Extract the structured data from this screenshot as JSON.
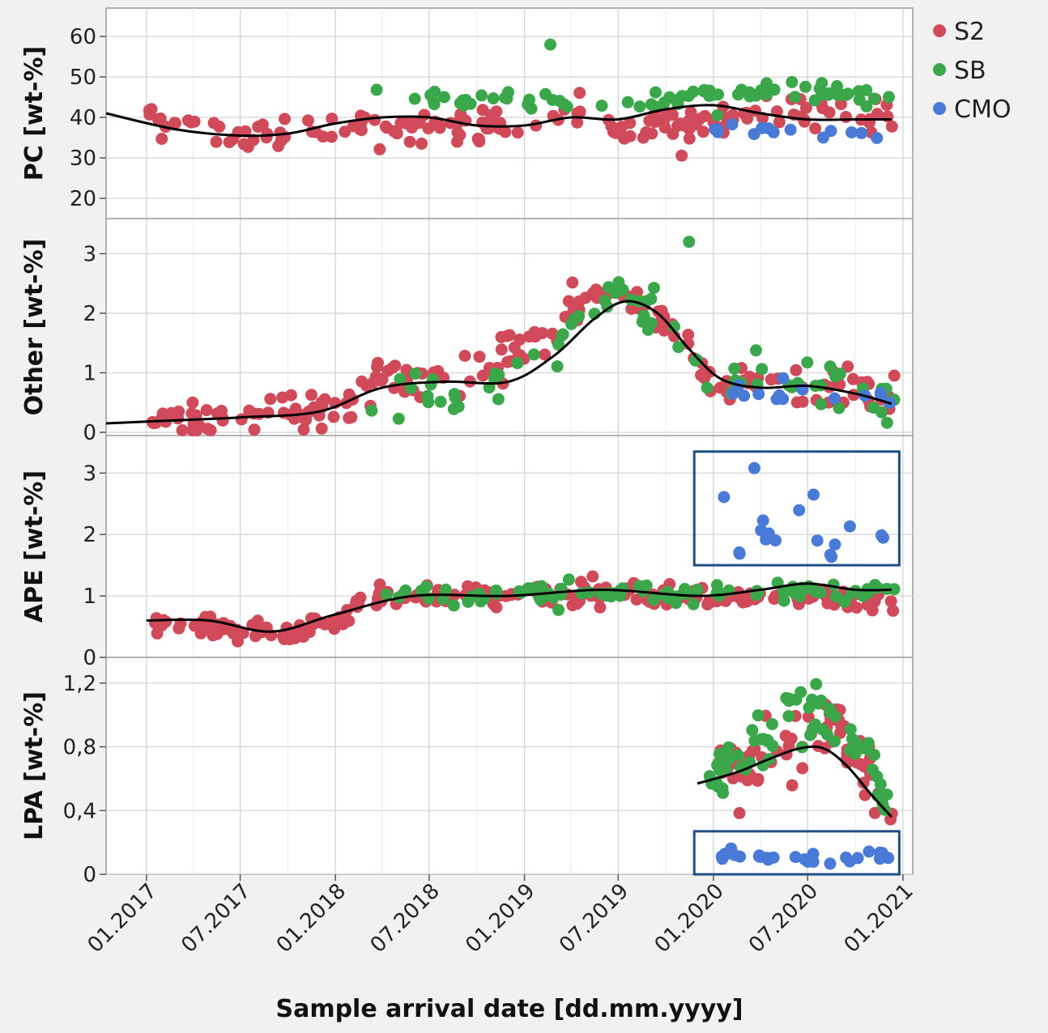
{
  "chart_data": {
    "type": "scatter",
    "xlabel": "Sample arrival date [dd.mm.yyyy]",
    "x_tick_labels": [
      "01.2017",
      "07.2017",
      "01.2018",
      "07.2018",
      "01.2019",
      "07.2019",
      "01.2020",
      "07.2020",
      "01.2021"
    ],
    "xlim": [
      "2016-10-15",
      "2021-01-20"
    ],
    "grid": true,
    "legend": {
      "position": "top-right",
      "entries": [
        {
          "name": "S2",
          "color": "#d04a5a"
        },
        {
          "name": "SB",
          "color": "#3aa84a"
        },
        {
          "name": "CMO",
          "color": "#4a7ad8"
        }
      ]
    },
    "fit_line_color": "#000000",
    "panels": [
      {
        "ylabel": "PC [wt-%]",
        "ylim": [
          17,
          65
        ],
        "y_tick_labels": [
          "20",
          "30",
          "40",
          "50",
          "60"
        ],
        "y_tick_values": [
          20,
          30,
          40,
          50,
          60
        ],
        "trend": {
          "x": [
            "2016-10-15",
            "2017-03-01",
            "2017-07-01",
            "2017-10-01",
            "2018-01-01",
            "2018-04-01",
            "2018-07-01",
            "2018-10-01",
            "2019-01-01",
            "2019-04-01",
            "2019-07-01",
            "2019-10-01",
            "2020-01-01",
            "2020-04-01",
            "2020-07-01",
            "2020-10-01",
            "2020-12-10"
          ],
          "y": [
            41,
            37,
            35.5,
            36,
            38.5,
            40,
            40,
            38,
            38,
            40,
            39.5,
            42,
            43,
            41,
            39.5,
            39.5,
            39.5
          ]
        },
        "series": [
          {
            "name": "S2",
            "base": [
              [
                1,
                40
              ],
              [
                6,
                35
              ],
              [
                12,
                38
              ],
              [
                18,
                38
              ],
              [
                24,
                38
              ],
              [
                27,
                41
              ],
              [
                30,
                37
              ],
              [
                33,
                38
              ],
              [
                36,
                39
              ],
              [
                42,
                42
              ],
              [
                46,
                40
              ]
            ],
            "spread": 3.2,
            "n": 170,
            "x_range": [
              0,
              47.5
            ]
          },
          {
            "name": "SB",
            "base": [
              [
                14,
                45
              ],
              [
                24,
                45
              ],
              [
                30,
                43
              ],
              [
                36,
                46
              ],
              [
                42,
                47
              ],
              [
                47,
                44
              ]
            ],
            "spread": 2.2,
            "n": 75,
            "x_range": [
              14,
              47.5
            ]
          },
          {
            "name": "CMO",
            "base": [
              [
                36,
                38
              ],
              [
                47,
                36
              ]
            ],
            "spread": 1.8,
            "n": 14,
            "x_range": [
              36,
              47.5
            ]
          }
        ],
        "outliers": [
          {
            "series": "SB",
            "x": "2019-02-20",
            "y": 58
          }
        ]
      },
      {
        "ylabel": "Other [wt-%]",
        "ylim": [
          0,
          3.4
        ],
        "y_tick_labels": [
          "0",
          "1",
          "2",
          "3"
        ],
        "y_tick_values": [
          0,
          1,
          2,
          3
        ],
        "trend": {
          "x": [
            "2016-10-15",
            "2017-01-01",
            "2017-07-01",
            "2017-12-01",
            "2018-04-01",
            "2018-08-01",
            "2018-12-01",
            "2019-03-01",
            "2019-05-15",
            "2019-07-15",
            "2019-09-15",
            "2019-11-15",
            "2020-01-15",
            "2020-04-01",
            "2020-07-01",
            "2020-10-01",
            "2020-12-10"
          ],
          "y": [
            0.15,
            0.18,
            0.25,
            0.35,
            0.75,
            0.85,
            0.85,
            1.3,
            1.9,
            2.2,
            2.0,
            1.4,
            0.9,
            0.75,
            0.78,
            0.65,
            0.48
          ]
        },
        "series": [
          {
            "name": "S2",
            "base": [
              [
                0,
                0.15
              ],
              [
                6,
                0.25
              ],
              [
                12,
                0.4
              ],
              [
                15,
                0.9
              ],
              [
                18,
                1.0
              ],
              [
                21,
                1.0
              ],
              [
                24,
                1.5
              ],
              [
                29,
                2.4
              ],
              [
                32,
                2.1
              ],
              [
                36,
                0.8
              ],
              [
                42,
                0.8
              ],
              [
                47,
                0.6
              ]
            ],
            "spread": 0.28,
            "n": 200,
            "x_range": [
              0,
              47.5
            ]
          },
          {
            "name": "SB",
            "base": [
              [
                14,
                0.5
              ],
              [
                18,
                0.6
              ],
              [
                24,
                1.0
              ],
              [
                27,
                1.8
              ],
              [
                30,
                2.3
              ],
              [
                33,
                1.8
              ],
              [
                36,
                0.8
              ],
              [
                42,
                0.9
              ],
              [
                47,
                0.5
              ]
            ],
            "spread": 0.35,
            "n": 80,
            "x_range": [
              14,
              47.5
            ]
          },
          {
            "name": "CMO",
            "base": [
              [
                36,
                0.7
              ],
              [
                47,
                0.6
              ]
            ],
            "spread": 0.15,
            "n": 14,
            "x_range": [
              36,
              47.5
            ]
          }
        ],
        "outliers": [
          {
            "series": "SB",
            "x": "2019-11-15",
            "y": 3.2
          }
        ]
      },
      {
        "ylabel": "APE [wt-%]",
        "ylim": [
          0,
          3.4
        ],
        "y_tick_labels": [
          "0",
          "1",
          "2",
          "3"
        ],
        "y_tick_values": [
          0,
          1,
          2,
          3
        ],
        "trend": {
          "x": [
            "2017-01-01",
            "2017-05-01",
            "2017-09-01",
            "2018-01-01",
            "2018-06-01",
            "2018-12-01",
            "2019-06-01",
            "2019-12-01",
            "2020-04-01",
            "2020-07-01",
            "2020-10-01",
            "2020-12-10"
          ],
          "y": [
            0.6,
            0.6,
            0.42,
            0.7,
            1.0,
            1.0,
            1.1,
            1.0,
            1.1,
            1.2,
            1.1,
            1.1
          ]
        },
        "series": [
          {
            "name": "S2",
            "base": [
              [
                0.5,
                0.55
              ],
              [
                8,
                0.4
              ],
              [
                12,
                0.55
              ],
              [
                14,
                1.0
              ],
              [
                24,
                1.05
              ],
              [
                36,
                1.0
              ],
              [
                47,
                0.95
              ]
            ],
            "spread": 0.15,
            "n": 230,
            "x_range": [
              0.3,
              47.5
            ]
          },
          {
            "name": "SB",
            "base": [
              [
                15,
                1.0
              ],
              [
                24,
                1.05
              ],
              [
                36,
                1.05
              ],
              [
                47,
                1.1
              ]
            ],
            "spread": 0.12,
            "n": 90,
            "x_range": [
              15,
              47.5
            ]
          },
          {
            "name": "CMO",
            "base": [
              [
                36,
                2.1
              ],
              [
                47,
                2.0
              ]
            ],
            "spread": 0.35,
            "n": 17,
            "x_range": [
              36,
              47.5
            ]
          }
        ],
        "outliers": [
          {
            "series": "CMO",
            "x": "2020-03-20",
            "y": 3.08
          }
        ]
      },
      {
        "ylabel": "LPA [wt-%]",
        "ylim": [
          0,
          1.28
        ],
        "y_tick_labels": [
          "0",
          "0,4",
          "0,8",
          "1,2"
        ],
        "y_tick_values": [
          0,
          0.4,
          0.8,
          1.2
        ],
        "trend": {
          "x": [
            "2019-12-01",
            "2020-02-15",
            "2020-04-15",
            "2020-06-15",
            "2020-08-01",
            "2020-09-15",
            "2020-11-01",
            "2020-12-10"
          ],
          "y": [
            0.57,
            0.64,
            0.72,
            0.79,
            0.79,
            0.68,
            0.5,
            0.36
          ]
        },
        "series": [
          {
            "name": "S2",
            "base": [
              [
                36,
                0.6
              ],
              [
                39,
                0.7
              ],
              [
                42,
                0.85
              ],
              [
                44,
                0.9
              ],
              [
                46,
                0.55
              ],
              [
                47.5,
                0.4
              ]
            ],
            "spread": 0.15,
            "n": 70,
            "x_range": [
              36,
              47.5
            ]
          },
          {
            "name": "SB",
            "base": [
              [
                35.5,
                0.6
              ],
              [
                38,
                0.75
              ],
              [
                41,
                1.0
              ],
              [
                43,
                1.0
              ],
              [
                45,
                0.8
              ],
              [
                47.5,
                0.4
              ]
            ],
            "spread": 0.16,
            "n": 70,
            "x_range": [
              35.5,
              47.5
            ]
          },
          {
            "name": "CMO",
            "base": [
              [
                36,
                0.12
              ],
              [
                47,
                0.1
              ]
            ],
            "spread": 0.03,
            "n": 28,
            "x_range": [
              36,
              47.5
            ]
          }
        ],
        "outliers": []
      }
    ],
    "highlight_boxes": [
      {
        "panel": "APE [wt-%]",
        "x0": "2019-11-25",
        "x1": "2020-12-25",
        "y0": 1.5,
        "y1": 3.35,
        "color": "#1f4f86"
      },
      {
        "panel": "LPA [wt-%]",
        "x0": "2019-11-25",
        "x1": "2020-12-25",
        "y0": 0.0,
        "y1": 0.27,
        "color": "#1f4f86"
      }
    ]
  }
}
